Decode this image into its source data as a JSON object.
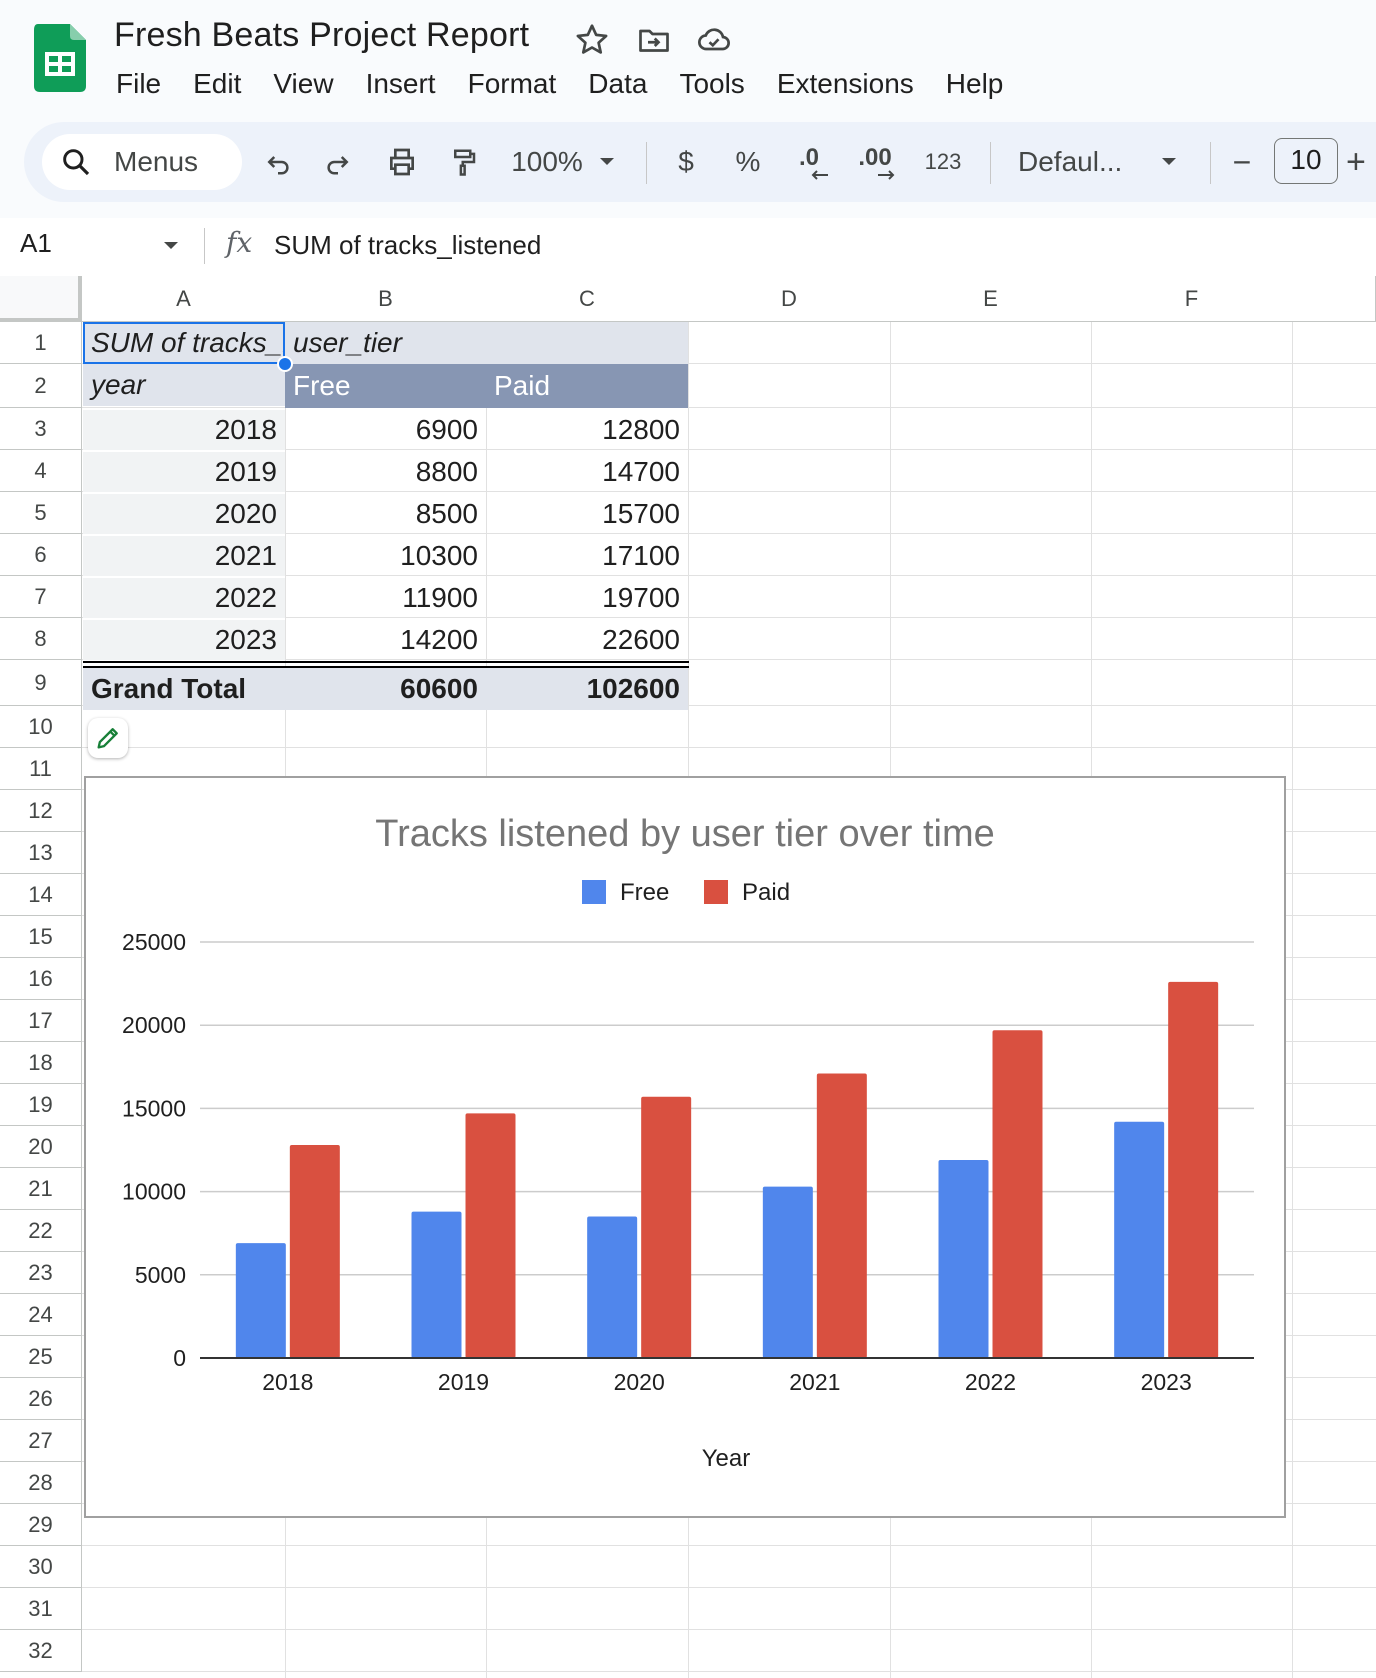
{
  "app": {
    "title": "Fresh Beats Project Report",
    "menu": [
      "File",
      "Edit",
      "View",
      "Insert",
      "Format",
      "Data",
      "Tools",
      "Extensions",
      "Help"
    ]
  },
  "toolbar": {
    "search_label": "Menus",
    "zoom": "100%",
    "currency": "$",
    "percent": "%",
    "decrease_decimal": ".0",
    "increase_decimal": ".00",
    "number_format": "123",
    "font": "Defaul...",
    "font_size": "10",
    "minus": "−",
    "plus": "+"
  },
  "formula_bar": {
    "cell_ref": "A1",
    "fx": "fx",
    "formula": "SUM of tracks_listened"
  },
  "grid": {
    "columns": [
      "A",
      "B",
      "C",
      "D",
      "E",
      "F"
    ],
    "rows": [
      "1",
      "2",
      "3",
      "4",
      "5",
      "6",
      "7",
      "8",
      "9",
      "10",
      "11",
      "12",
      "13",
      "14",
      "15",
      "16",
      "17",
      "18",
      "19",
      "20",
      "21",
      "22",
      "23",
      "24",
      "25",
      "26",
      "27",
      "28",
      "29",
      "30",
      "31",
      "32"
    ]
  },
  "pivot": {
    "a1": "SUM of tracks_listened",
    "b1": "user_tier",
    "a2": "year",
    "b2": "Free",
    "c2": "Paid",
    "rows": [
      {
        "year": "2018",
        "free": "6900",
        "paid": "12800"
      },
      {
        "year": "2019",
        "free": "8800",
        "paid": "14700"
      },
      {
        "year": "2020",
        "free": "8500",
        "paid": "15700"
      },
      {
        "year": "2021",
        "free": "10300",
        "paid": "17100"
      },
      {
        "year": "2022",
        "free": "11900",
        "paid": "19700"
      },
      {
        "year": "2023",
        "free": "14200",
        "paid": "22600"
      }
    ],
    "total_label": "Grand Total",
    "total_free": "60600",
    "total_paid": "102600"
  },
  "chart_data": {
    "type": "bar",
    "title": "Tracks listened by user tier over time",
    "xlabel": "Year",
    "ylabel": "",
    "categories": [
      "2018",
      "2019",
      "2020",
      "2021",
      "2022",
      "2023"
    ],
    "series": [
      {
        "name": "Free",
        "values": [
          6900,
          8800,
          8500,
          10300,
          11900,
          14200
        ],
        "color": "#5086ec"
      },
      {
        "name": "Paid",
        "values": [
          12800,
          14700,
          15700,
          17100,
          19700,
          22600
        ],
        "color": "#d95040"
      }
    ],
    "ylim": [
      0,
      25000
    ],
    "yticks": [
      0,
      5000,
      10000,
      15000,
      20000,
      25000
    ],
    "legend": "top",
    "grid": true
  },
  "colors": {
    "header_bg": "#f9fbfd",
    "toolbar_bg": "#edf2fa",
    "pivot_light": "#e0e4ec",
    "pivot_dark": "#8796b3",
    "selection": "#1a73e8",
    "sheets_green": "#0f9d58"
  }
}
